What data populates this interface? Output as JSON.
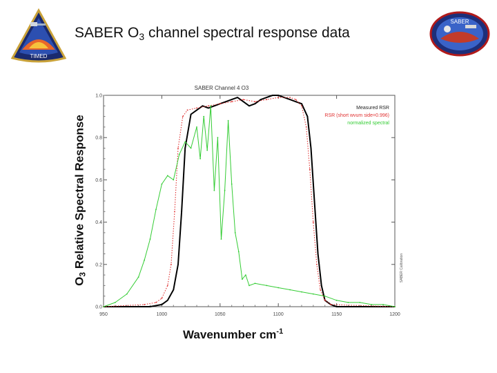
{
  "slide": {
    "title_main": "SABER O",
    "title_sub": "3",
    "title_rest": " channel spectral response data",
    "left_logo_text": "TIMED",
    "right_logo_text": "SABER"
  },
  "axes": {
    "y_title_main": "O",
    "y_title_sub": "3",
    "y_title_rest": " Relative Spectral Response",
    "x_title_main": "Wavenumber cm",
    "x_title_sup": "-1"
  },
  "chart_data": {
    "type": "line",
    "title": "SABER Channel 4  O3",
    "xlim": [
      950,
      1200
    ],
    "ylim": [
      0.0,
      1.0
    ],
    "x_ticks": [
      "950",
      "1000",
      "1050",
      "1100",
      "1150",
      "1200"
    ],
    "y_ticks": [
      "0.0",
      "0.2",
      "0.4",
      "0.6",
      "0.8",
      "1.0"
    ],
    "side_note": "SABER Calibration",
    "legend_position": "top-right",
    "series": [
      {
        "name": "Measured RSR",
        "color": "#000000",
        "style": "solid",
        "x": [
          950,
          990,
          1000,
          1005,
          1010,
          1014,
          1017,
          1020,
          1025,
          1030,
          1035,
          1040,
          1045,
          1050,
          1055,
          1060,
          1065,
          1070,
          1075,
          1080,
          1085,
          1090,
          1095,
          1100,
          1105,
          1110,
          1115,
          1120,
          1125,
          1128,
          1131,
          1134,
          1137,
          1140,
          1145,
          1150,
          1200
        ],
        "y": [
          0.0,
          0.0,
          0.01,
          0.03,
          0.08,
          0.2,
          0.45,
          0.75,
          0.91,
          0.93,
          0.95,
          0.94,
          0.95,
          0.96,
          0.97,
          0.98,
          0.99,
          0.97,
          0.95,
          0.96,
          0.98,
          0.99,
          1.0,
          1.0,
          0.99,
          0.98,
          0.97,
          0.96,
          0.9,
          0.75,
          0.5,
          0.25,
          0.1,
          0.03,
          0.01,
          0.0,
          0.0
        ]
      },
      {
        "name": "RSR (short wvum side=0.996)",
        "color": "#e03030",
        "style": "dotted",
        "x": [
          950,
          985,
          995,
          1000,
          1005,
          1008,
          1011,
          1014,
          1018,
          1022,
          1030,
          1040,
          1050,
          1060,
          1070,
          1080,
          1090,
          1100,
          1110,
          1115,
          1120,
          1124,
          1127,
          1130,
          1133,
          1136,
          1140,
          1145,
          1200
        ],
        "y": [
          0.0,
          0.01,
          0.02,
          0.04,
          0.1,
          0.2,
          0.45,
          0.75,
          0.9,
          0.93,
          0.94,
          0.95,
          0.96,
          0.97,
          0.98,
          0.97,
          0.98,
          0.99,
          0.99,
          0.98,
          0.95,
          0.85,
          0.65,
          0.4,
          0.2,
          0.08,
          0.03,
          0.01,
          0.0
        ]
      },
      {
        "name": "normalized spectral",
        "color": "#33cc33",
        "style": "solid",
        "x": [
          950,
          960,
          970,
          980,
          985,
          990,
          995,
          1000,
          1005,
          1010,
          1015,
          1020,
          1025,
          1030,
          1033,
          1036,
          1039,
          1042,
          1045,
          1048,
          1051,
          1054,
          1057,
          1060,
          1063,
          1066,
          1069,
          1072,
          1075,
          1080,
          1090,
          1100,
          1110,
          1120,
          1130,
          1140,
          1150,
          1160,
          1170,
          1180,
          1190,
          1200
        ],
        "y": [
          0.0,
          0.02,
          0.06,
          0.14,
          0.22,
          0.32,
          0.46,
          0.58,
          0.62,
          0.6,
          0.72,
          0.78,
          0.75,
          0.85,
          0.7,
          0.9,
          0.74,
          0.95,
          0.55,
          0.8,
          0.32,
          0.55,
          0.88,
          0.58,
          0.35,
          0.26,
          0.13,
          0.15,
          0.1,
          0.11,
          0.1,
          0.09,
          0.08,
          0.07,
          0.06,
          0.05,
          0.03,
          0.02,
          0.02,
          0.01,
          0.01,
          0.0
        ]
      }
    ]
  }
}
